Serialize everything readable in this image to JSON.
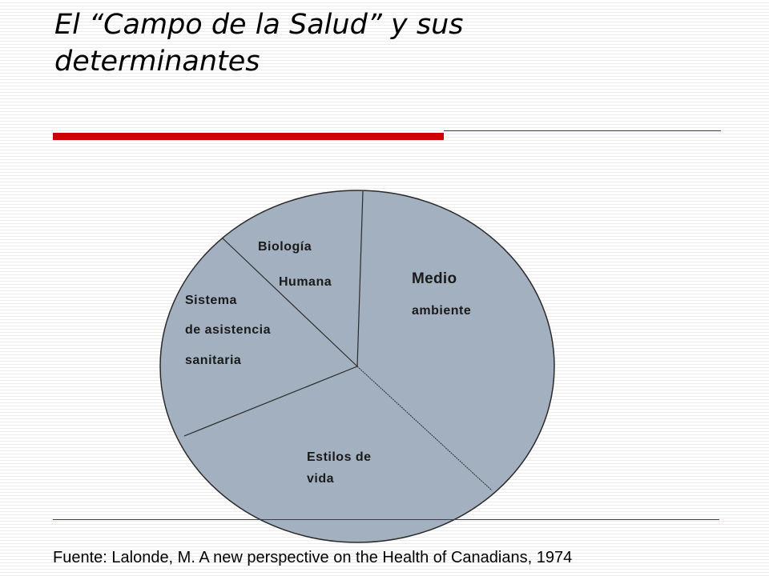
{
  "slide": {
    "title": "El “Campo de la Salud” y sus\ndeterminantes",
    "source": "Fuente: Lalonde, M. A new perspective on the Health of Canadians, 1974",
    "accent_color": "#cc0000"
  },
  "diagram": {
    "fill_color": "#a3b0bf",
    "segments": [
      {
        "id": "medio-ambiente",
        "line1": "Medio",
        "line2": "ambiente"
      },
      {
        "id": "estilos-de-vida",
        "line1": "Estilos de",
        "line2": "vida"
      },
      {
        "id": "sistema-sanitario",
        "line1": "Sistema",
        "line2": "de asistencia",
        "line3": "sanitaria"
      },
      {
        "id": "biologia-humana",
        "line1": "Biología",
        "line2": "Humana"
      }
    ]
  }
}
